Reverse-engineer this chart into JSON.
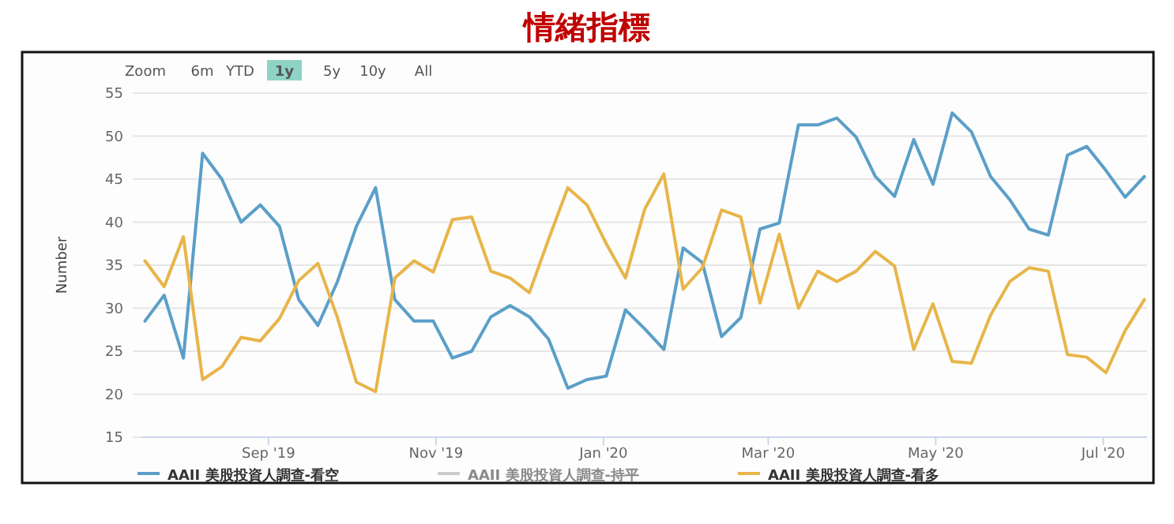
{
  "chart_data": {
    "type": "line",
    "title": "情緒指標",
    "ylabel": "Number",
    "annotations": [
      "Zoom",
      "6m",
      "YTD",
      "1y",
      "5y",
      "10y",
      "All"
    ],
    "x": [
      "2019-07-18",
      "2019-07-25",
      "2019-08-01",
      "2019-08-08",
      "2019-08-15",
      "2019-08-22",
      "2019-08-29",
      "2019-09-05",
      "2019-09-12",
      "2019-09-19",
      "2019-09-26",
      "2019-10-03",
      "2019-10-10",
      "2019-10-17",
      "2019-10-24",
      "2019-10-31",
      "2019-11-07",
      "2019-11-14",
      "2019-11-21",
      "2019-11-28",
      "2019-12-05",
      "2019-12-12",
      "2019-12-19",
      "2019-12-26",
      "2020-01-02",
      "2020-01-09",
      "2020-01-16",
      "2020-01-23",
      "2020-01-30",
      "2020-02-06",
      "2020-02-13",
      "2020-02-20",
      "2020-02-27",
      "2020-03-05",
      "2020-03-12",
      "2020-03-19",
      "2020-03-26",
      "2020-04-02",
      "2020-04-09",
      "2020-04-16",
      "2020-04-23",
      "2020-04-30",
      "2020-05-07",
      "2020-05-14",
      "2020-05-21",
      "2020-05-28",
      "2020-06-04",
      "2020-06-11",
      "2020-06-18",
      "2020-06-25",
      "2020-07-02",
      "2020-07-09",
      "2020-07-16"
    ],
    "series": [
      {
        "name": "AAII 美股投資人調查-看空",
        "color": "#5b9fc8",
        "values": [
          28.5,
          31.5,
          24.2,
          48,
          45,
          40,
          42,
          39.5,
          31,
          28,
          33,
          39.5,
          44,
          31,
          28.5,
          28.5,
          24.2,
          25,
          29,
          30.3,
          29,
          26.4,
          20.7,
          21.7,
          22.1,
          29.8,
          27.6,
          25.2,
          37,
          35.3,
          26.7,
          28.9,
          39.2,
          39.9,
          51.3,
          51.3,
          52.1,
          49.9,
          45.3,
          43,
          49.6,
          44.4,
          52.7,
          50.5,
          45.3,
          42.6,
          39.2,
          38.5,
          47.8,
          48.8,
          46,
          42.9,
          45.3
        ]
      },
      {
        "name": "AAII 美股投資人調查-持平",
        "color": "#cccccc",
        "values": [
          null,
          null,
          null,
          null,
          null,
          null,
          null,
          null,
          null,
          null,
          null,
          null,
          null,
          null,
          null,
          null,
          null,
          null,
          null,
          null,
          null,
          null,
          null,
          null,
          null,
          null,
          null,
          null,
          null,
          null,
          null,
          null,
          null,
          null,
          null,
          null,
          null,
          null,
          null,
          null,
          null,
          null,
          null,
          null,
          null,
          null,
          null,
          null,
          null,
          null,
          null,
          null,
          null
        ]
      },
      {
        "name": "AAII 美股投資人調查-看多",
        "color": "#e8b54a",
        "values": [
          35.5,
          32.5,
          38.3,
          21.7,
          23.2,
          26.6,
          26.2,
          28.8,
          33.2,
          35.2,
          29,
          21.4,
          20.3,
          33.5,
          35.5,
          34.2,
          40.3,
          40.6,
          34.3,
          33.5,
          31.8,
          38,
          44,
          42,
          37.5,
          33.5,
          41.5,
          45.6,
          32.2,
          34.7,
          41.4,
          40.6,
          30.6,
          38.6,
          30,
          34.3,
          33.1,
          34.3,
          36.6,
          34.9,
          25.2,
          30.5,
          23.8,
          23.6,
          29.2,
          33.1,
          34.7,
          34.3,
          24.6,
          24.3,
          22.5,
          27.4,
          31
        ]
      }
    ],
    "xlim": [
      "2019-07-17",
      "2020-07-17"
    ],
    "xticks": [
      {
        "value": "2019-09-01",
        "label": "Sep '19"
      },
      {
        "value": "2019-11-01",
        "label": "Nov '19"
      },
      {
        "value": "2020-01-01",
        "label": "Jan '20"
      },
      {
        "value": "2020-03-01",
        "label": "Mar '20"
      },
      {
        "value": "2020-05-01",
        "label": "May '20"
      },
      {
        "value": "2020-07-01",
        "label": "Jul '20"
      }
    ],
    "ylim": [
      15,
      55
    ],
    "yticks": [
      15,
      20,
      25,
      30,
      35,
      40,
      45,
      50,
      55
    ],
    "grid": "y",
    "legend": "bottom",
    "marker": "none",
    "line_style": "solid"
  }
}
